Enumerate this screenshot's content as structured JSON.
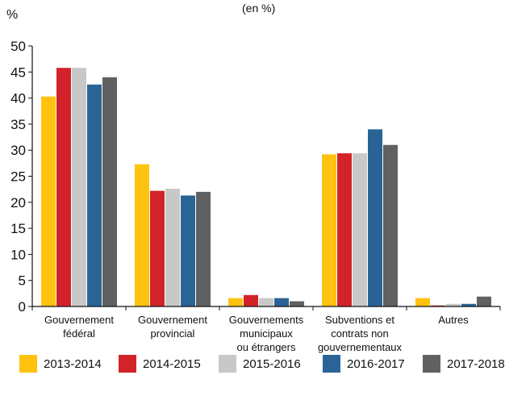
{
  "chart_data": {
    "type": "bar",
    "subtitle": "(en %)",
    "y_unit": "%",
    "ylim": [
      0,
      50
    ],
    "y_ticks": [
      0,
      5,
      10,
      15,
      20,
      25,
      30,
      35,
      40,
      45,
      50
    ],
    "grid": false,
    "legend_position": "bottom",
    "categories": [
      [
        "Gouvernement",
        "fédéral"
      ],
      [
        "Gouvernement",
        "provincial"
      ],
      [
        "Gouvernements",
        "municipaux",
        "ou étrangers"
      ],
      [
        "Subventions et",
        "contrats non",
        "gouvernementaux"
      ],
      [
        "Autres"
      ]
    ],
    "series": [
      {
        "name": "2013-2014",
        "color": "#FFC20E",
        "values": [
          40.3,
          27.3,
          1.6,
          29.2,
          1.6
        ]
      },
      {
        "name": "2014-2015",
        "color": "#D2232A",
        "values": [
          45.8,
          22.2,
          2.2,
          29.4,
          0.2
        ]
      },
      {
        "name": "2015-2016",
        "color": "#C8C8C8",
        "values": [
          45.8,
          22.6,
          1.6,
          29.4,
          0.5
        ]
      },
      {
        "name": "2016-2017",
        "color": "#2A6496",
        "values": [
          42.6,
          21.3,
          1.6,
          34.0,
          0.5
        ]
      },
      {
        "name": "2017-2018",
        "color": "#5F6163",
        "values": [
          44.0,
          22.0,
          1.0,
          31.0,
          1.9
        ]
      }
    ]
  }
}
